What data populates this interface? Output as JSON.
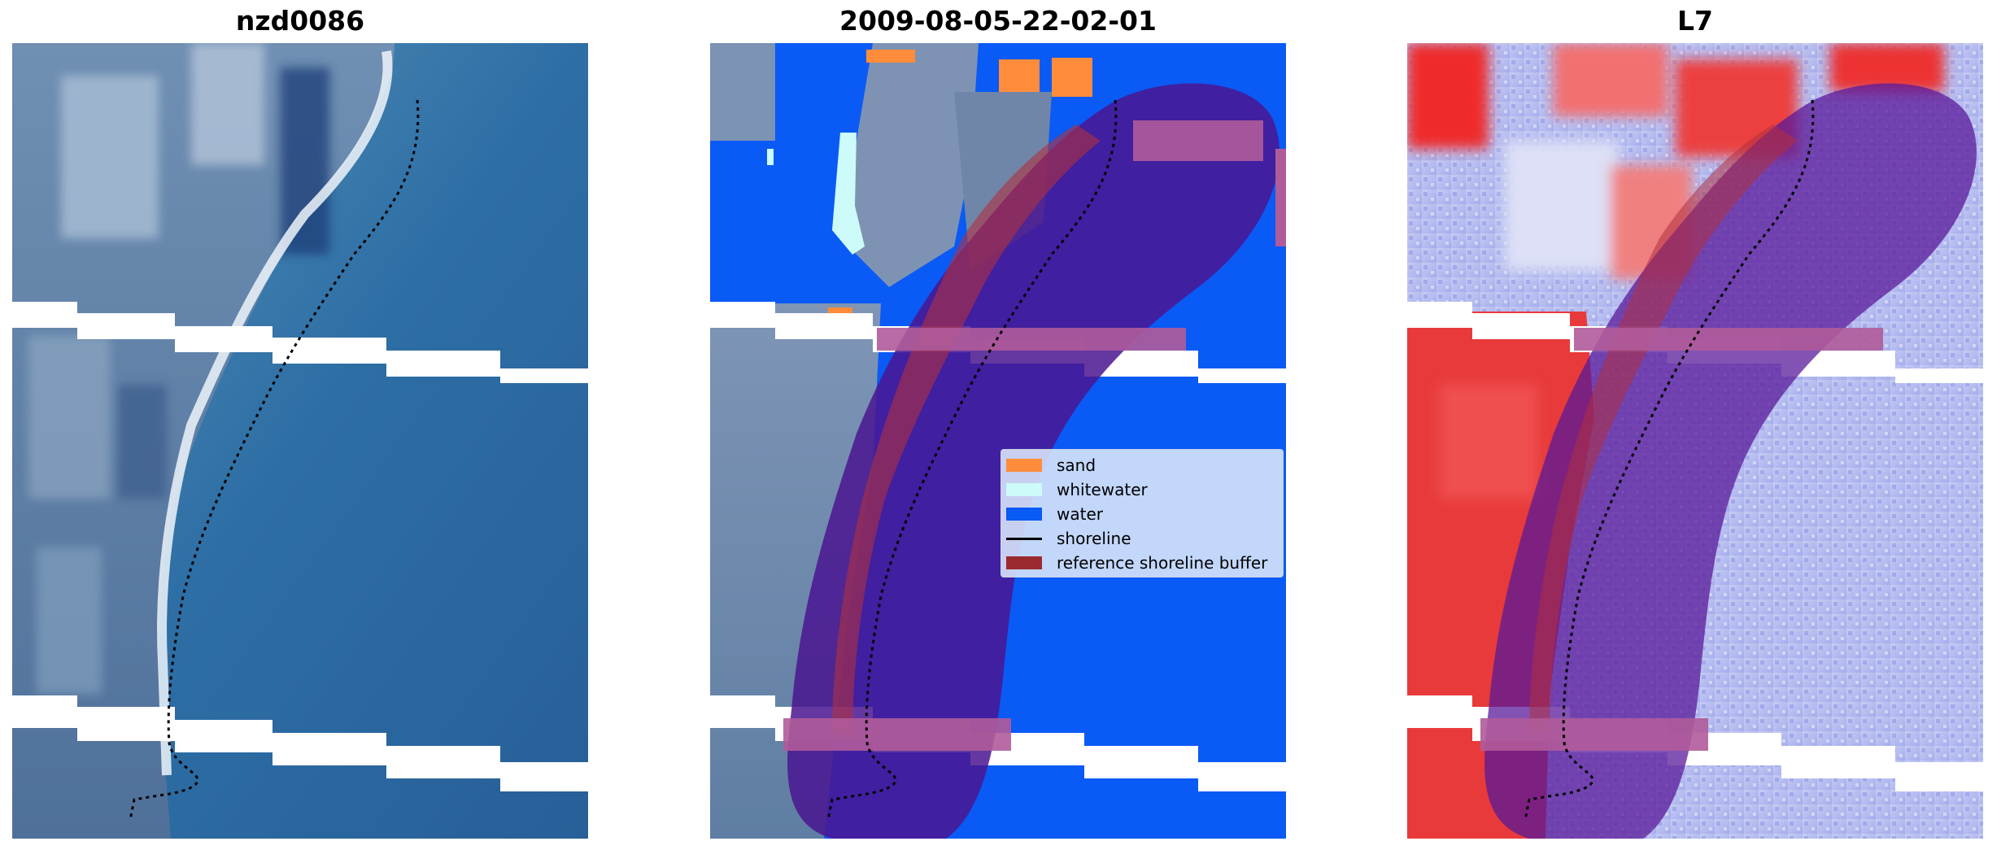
{
  "figure": {
    "panels": [
      {
        "title": "nzd0086"
      },
      {
        "title": "2009-08-05-22-02-01"
      },
      {
        "title": "L7"
      }
    ]
  },
  "legend": {
    "items": [
      {
        "label": "sand",
        "color": "#ff8c3a",
        "kind": "patch"
      },
      {
        "label": "whitewater",
        "color": "#ccfbfa",
        "kind": "patch"
      },
      {
        "label": "water",
        "color": "#0a5af5",
        "kind": "patch"
      },
      {
        "label": "shoreline",
        "color": "#000000",
        "kind": "line"
      },
      {
        "label": "reference shoreline buffer",
        "color": "#9b2a2f",
        "kind": "patch"
      }
    ]
  },
  "colors": {
    "water_class": "#0a5af5",
    "buffer_overlay": "#5a1a9a",
    "buffer_over_land": "#9b2a6a",
    "sea_rgb": "#2f6fa8",
    "land_rgb": "#5f7ea3",
    "index_high": "#e82020",
    "index_low": "#a9b2ee"
  }
}
